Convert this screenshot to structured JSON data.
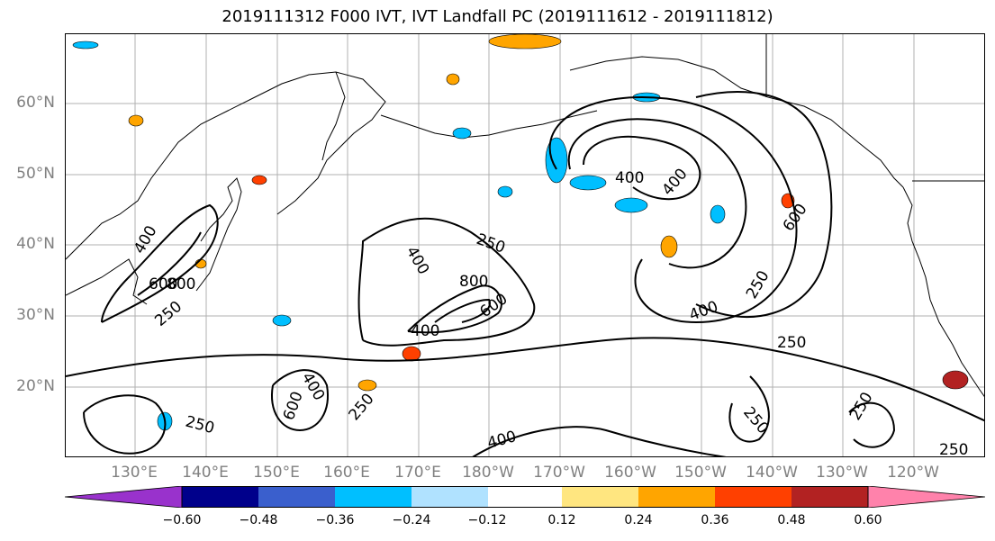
{
  "title": "2019111312 F000 IVT, IVT Landfall PC (2019111612 - 2019111812)",
  "map": {
    "lat_labels": [
      "60°N",
      "50°N",
      "40°N",
      "30°N",
      "20°N"
    ],
    "lon_labels": [
      "130°E",
      "140°E",
      "150°E",
      "160°E",
      "170°E",
      "180°W",
      "170°W",
      "160°W",
      "150°W",
      "140°W",
      "130°W",
      "120°W"
    ],
    "contour_labels": [
      "400",
      "600",
      "800",
      "250",
      "400",
      "800",
      "600",
      "400",
      "250",
      "400",
      "400",
      "600",
      "250",
      "400",
      "250",
      "250",
      "400",
      "600",
      "250",
      "250",
      "400",
      "250",
      "250"
    ],
    "land_color": "#000000",
    "grid_color": "#b0b0b0"
  },
  "colorbar": {
    "ticks": [
      "−0.60",
      "−0.48",
      "−0.36",
      "−0.24",
      "−0.12",
      "0.12",
      "0.24",
      "0.36",
      "0.48",
      "0.60"
    ],
    "colors": [
      "#9932CC",
      "#00008B",
      "#3A5FCD",
      "#00BFFF",
      "#B0E2FF",
      "#FFFFFF",
      "#FFE680",
      "#FFA500",
      "#FF4000",
      "#B22222",
      "#FF82AB",
      "#FF82AB"
    ]
  }
}
